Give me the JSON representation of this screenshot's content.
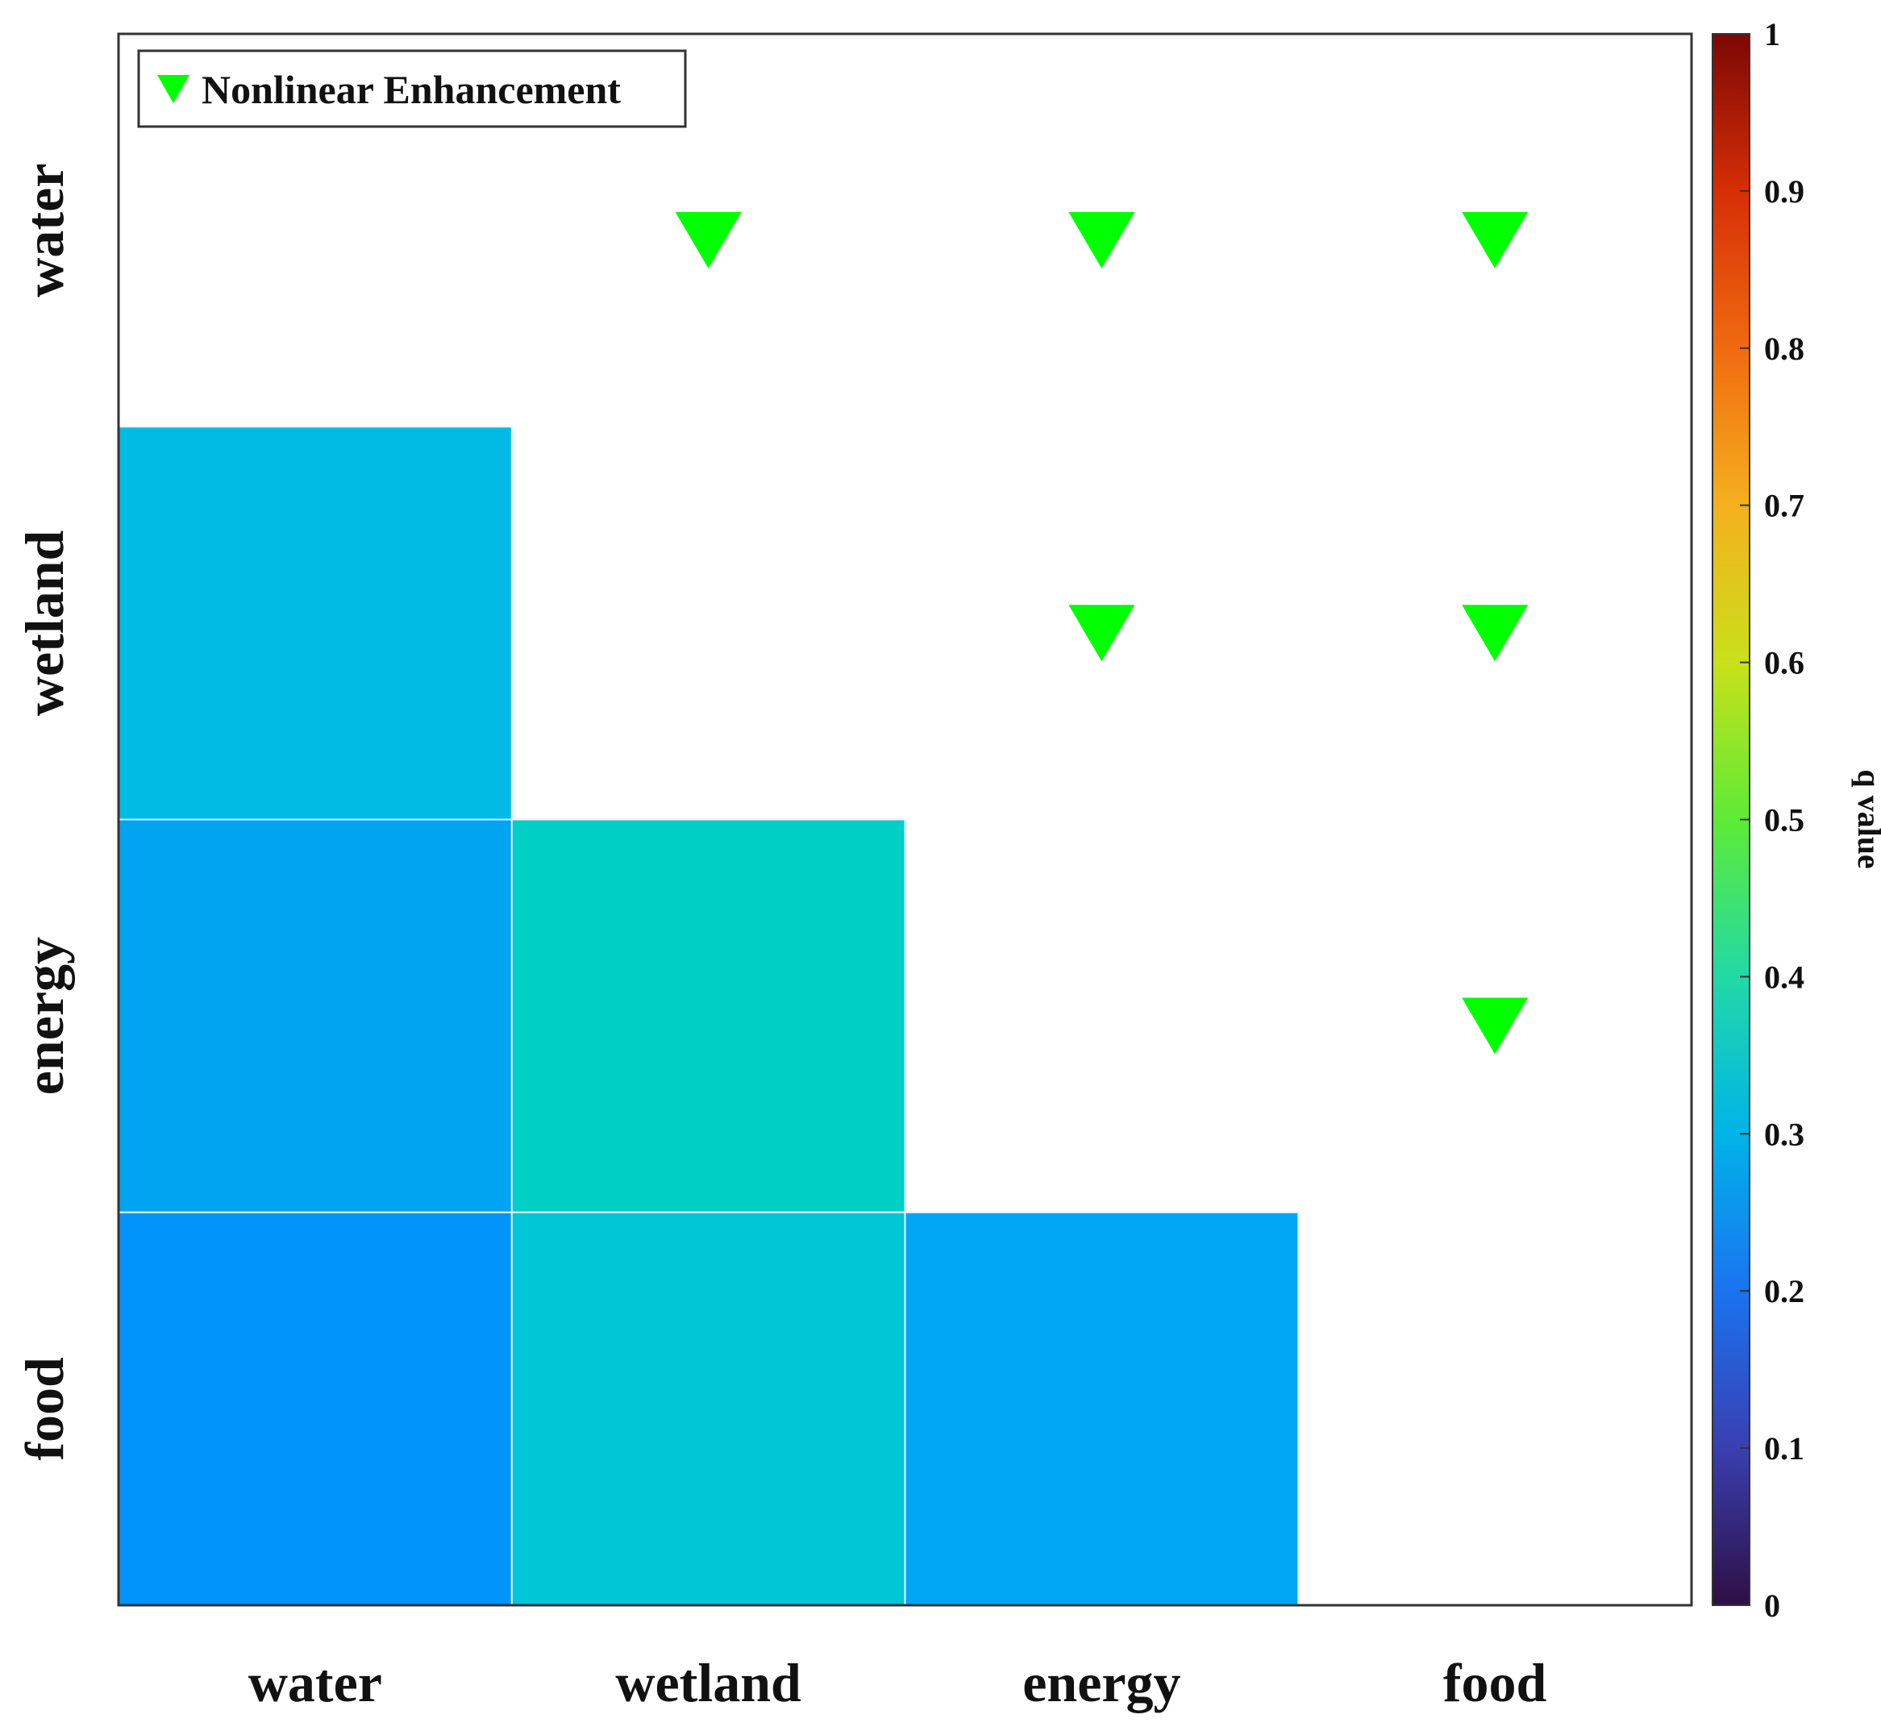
{
  "chart_data": {
    "type": "heatmap",
    "title": "",
    "categories": [
      "water",
      "wetland",
      "energy",
      "food"
    ],
    "x_labels": [
      "water",
      "wetland",
      "energy",
      "food"
    ],
    "y_labels": [
      "water",
      "wetland",
      "energy",
      "food"
    ],
    "cells": [
      {
        "row": "wetland",
        "col": "water",
        "value": 0.25,
        "color": "#00BCE4"
      },
      {
        "row": "energy",
        "col": "water",
        "value": 0.22,
        "color": "#00A4F0"
      },
      {
        "row": "energy",
        "col": "wetland",
        "value": 0.3,
        "color": "#00CFC6"
      },
      {
        "row": "food",
        "col": "water",
        "value": 0.2,
        "color": "#0094FB"
      },
      {
        "row": "food",
        "col": "wetland",
        "value": 0.27,
        "color": "#00C6D6"
      },
      {
        "row": "food",
        "col": "energy",
        "value": 0.22,
        "color": "#00A6F4"
      }
    ],
    "markers": [
      {
        "row": "water",
        "col": "wetland",
        "type": "Nonlinear Enhancement"
      },
      {
        "row": "water",
        "col": "energy",
        "type": "Nonlinear Enhancement"
      },
      {
        "row": "water",
        "col": "food",
        "type": "Nonlinear Enhancement"
      },
      {
        "row": "wetland",
        "col": "energy",
        "type": "Nonlinear Enhancement"
      },
      {
        "row": "wetland",
        "col": "food",
        "type": "Nonlinear Enhancement"
      },
      {
        "row": "energy",
        "col": "food",
        "type": "Nonlinear Enhancement"
      }
    ],
    "legend": {
      "label": "Nonlinear Enhancement",
      "marker": "triangle-down",
      "color": "#00FF00",
      "position": "top-left"
    },
    "colorbar": {
      "label": "q value",
      "range": [
        0,
        1
      ],
      "ticks": [
        "0",
        "0.1",
        "0.2",
        "0.3",
        "0.4",
        "0.5",
        "0.6",
        "0.7",
        "0.8",
        "0.9",
        "1"
      ],
      "colormap": [
        "#2E0F44",
        "#3A3FB0",
        "#1A73F0",
        "#00B4E8",
        "#22D9A6",
        "#5EEB36",
        "#C9E01A",
        "#F5B01E",
        "#F06A10",
        "#D62E07",
        "#7C0805"
      ]
    }
  }
}
